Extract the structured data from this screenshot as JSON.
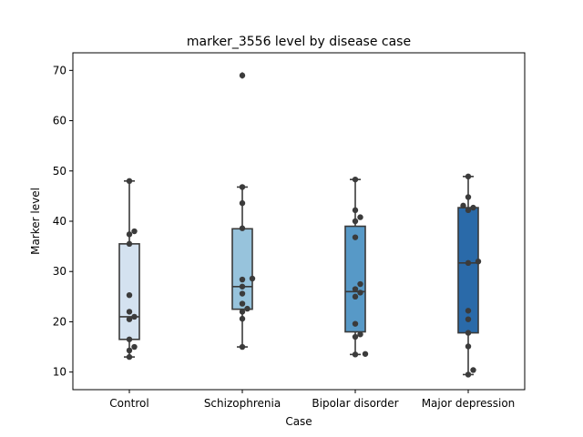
{
  "chart_data": {
    "type": "box",
    "title": "marker_3556 level by disease case",
    "xlabel": "Case",
    "ylabel": "Marker level",
    "ylim": [
      6.5,
      73.5
    ],
    "yticks": [
      10,
      20,
      30,
      40,
      50,
      60,
      70
    ],
    "grid": false,
    "legend": "none",
    "categories": [
      "Control",
      "Schizophrenia",
      "Bipolar disorder",
      "Major depression"
    ],
    "colors": [
      "#d4e2f0",
      "#97c3dc",
      "#5799c7",
      "#2a6aa9"
    ],
    "boxes": [
      {
        "q1": 16.5,
        "median": 21.0,
        "q3": 35.5,
        "whisker_low": 13.0,
        "whisker_high": 48.0,
        "outliers": []
      },
      {
        "q1": 22.5,
        "median": 27.0,
        "q3": 38.5,
        "whisker_low": 15.0,
        "whisker_high": 46.8,
        "outliers": [
          69.0
        ]
      },
      {
        "q1": 18.0,
        "median": 26.0,
        "q3": 39.0,
        "whisker_low": 13.5,
        "whisker_high": 48.3,
        "outliers": []
      },
      {
        "q1": 17.8,
        "median": 31.7,
        "q3": 42.7,
        "whisker_low": 9.5,
        "whisker_high": 48.9,
        "outliers": []
      }
    ],
    "points": [
      [
        13.0,
        14.3,
        15.0,
        16.5,
        20.5,
        21.0,
        22.0,
        25.3,
        35.5,
        37.4,
        38.0,
        48.0
      ],
      [
        15.0,
        20.6,
        22.0,
        22.6,
        23.6,
        25.6,
        27.0,
        28.4,
        28.6,
        38.6,
        43.6,
        46.8,
        69.0
      ],
      [
        13.5,
        13.6,
        17.0,
        17.5,
        19.6,
        25.0,
        25.8,
        26.5,
        27.5,
        36.8,
        40.0,
        40.8,
        42.2,
        48.3
      ],
      [
        9.5,
        10.4,
        15.1,
        17.8,
        20.5,
        22.2,
        31.7,
        32.0,
        42.2,
        42.7,
        43.1,
        44.8,
        48.9
      ]
    ]
  }
}
